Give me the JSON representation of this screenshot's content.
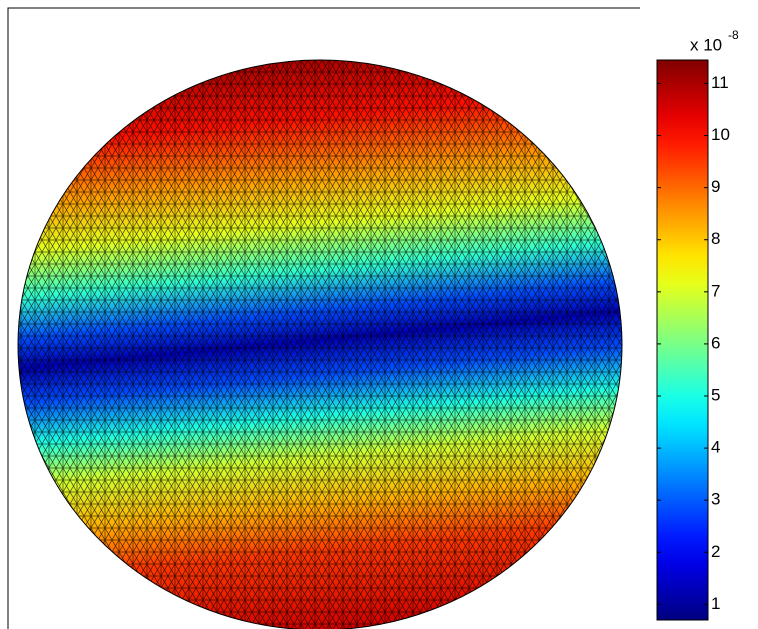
{
  "chart_data": {
    "type": "colorbar-field",
    "colormap": "jet",
    "colorbar": {
      "multiplier": "x 10",
      "exponent": "-8",
      "ylim": [
        0.7,
        11.45
      ],
      "yticks": [
        1,
        2,
        3,
        4,
        5,
        6,
        7,
        8,
        9,
        10,
        11
      ]
    }
  }
}
